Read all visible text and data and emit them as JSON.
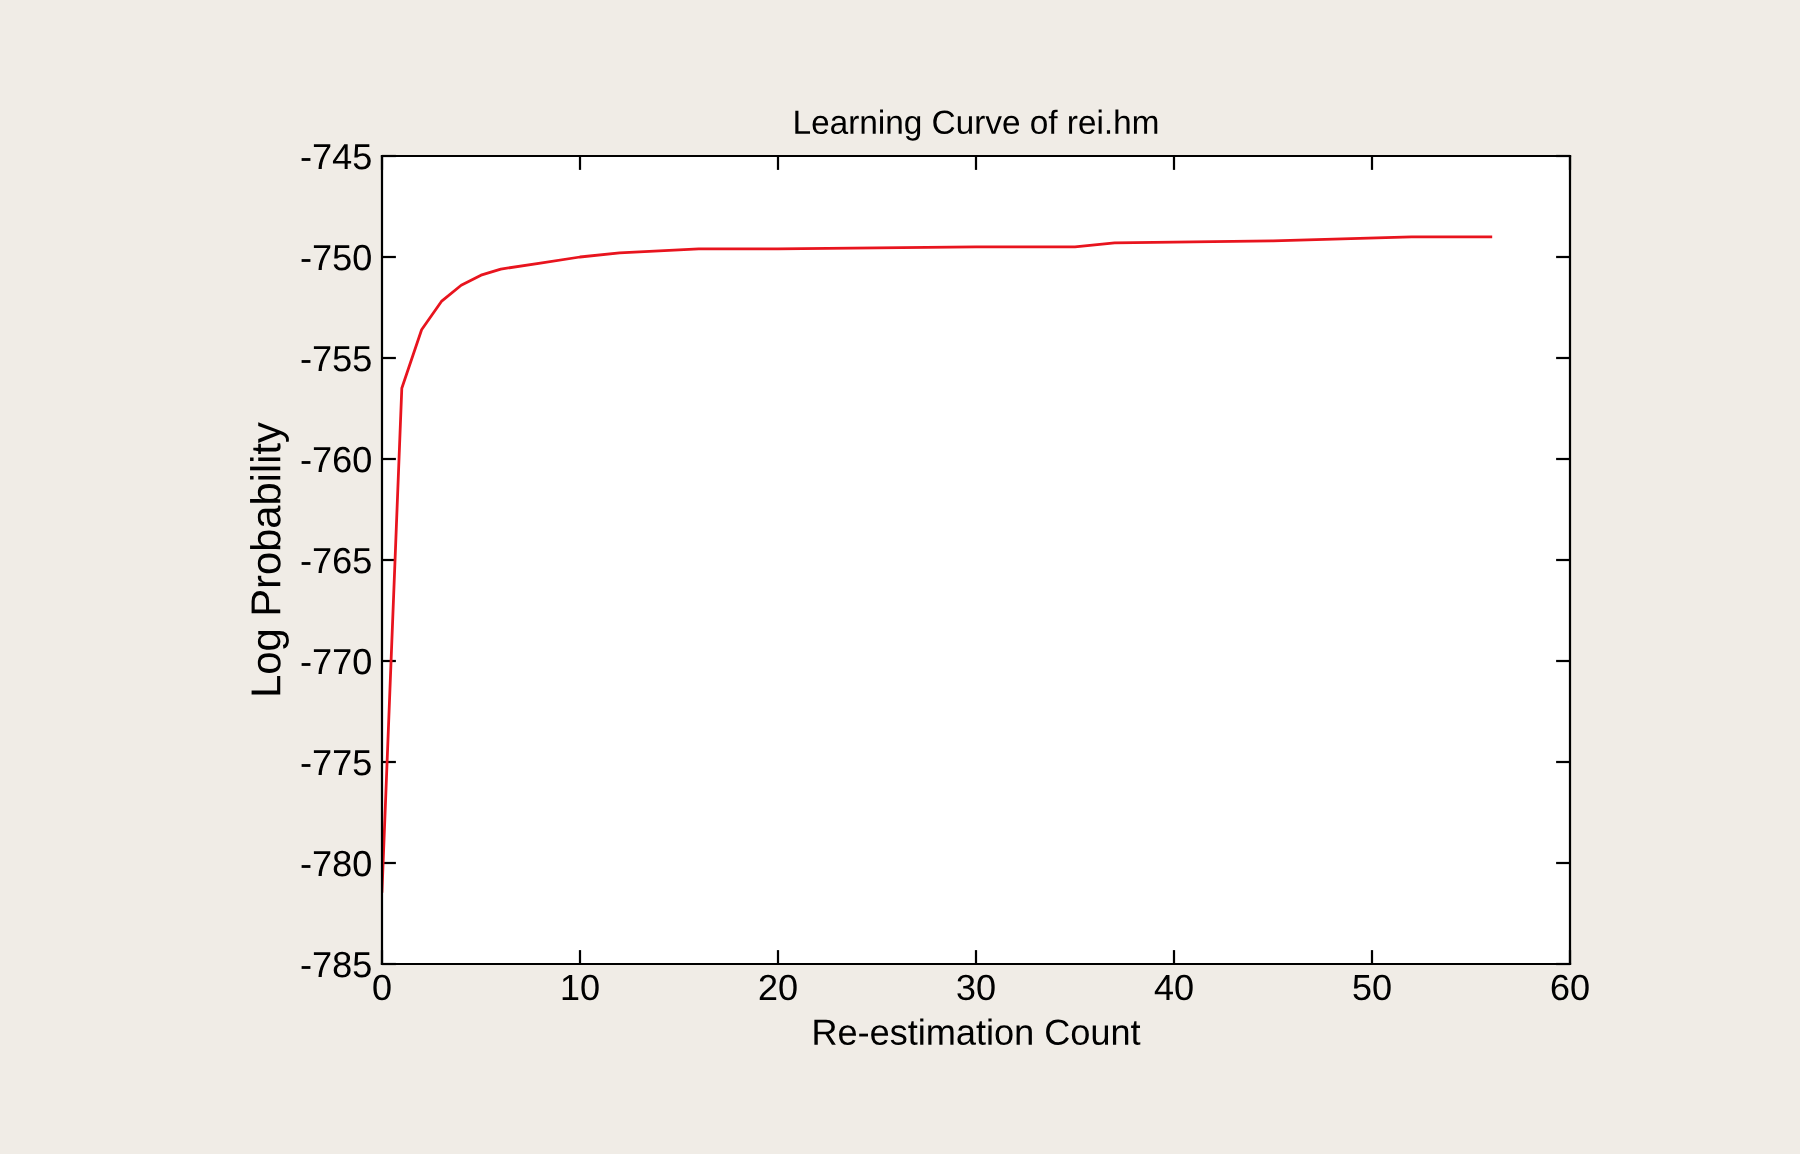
{
  "chart_data": {
    "type": "line",
    "title": "Learning Curve of rei.hm",
    "xlabel": "Re-estimation Count",
    "ylabel": "Log Probability",
    "x": [
      0,
      1,
      2,
      3,
      4,
      5,
      6,
      8,
      10,
      12,
      16,
      20,
      30,
      35,
      37,
      45,
      52,
      56
    ],
    "series": [
      {
        "color": "#e8141e",
        "values": [
          -781.4,
          -756.5,
          -753.6,
          -752.2,
          -751.4,
          -750.9,
          -750.6,
          -750.3,
          -750.0,
          -749.8,
          -749.6,
          -749.6,
          -749.5,
          -749.5,
          -749.3,
          -749.2,
          -749.0,
          -749.0
        ]
      }
    ],
    "xlim": [
      0,
      60
    ],
    "xticks": [
      0,
      10,
      20,
      30,
      40,
      50,
      60
    ],
    "ylim": [
      -785,
      -745
    ],
    "yticks": [
      -785,
      -780,
      -775,
      -770,
      -765,
      -760,
      -755,
      -750,
      -745
    ],
    "grid": false,
    "legend": false,
    "marker": "none",
    "line_style": "solid"
  }
}
